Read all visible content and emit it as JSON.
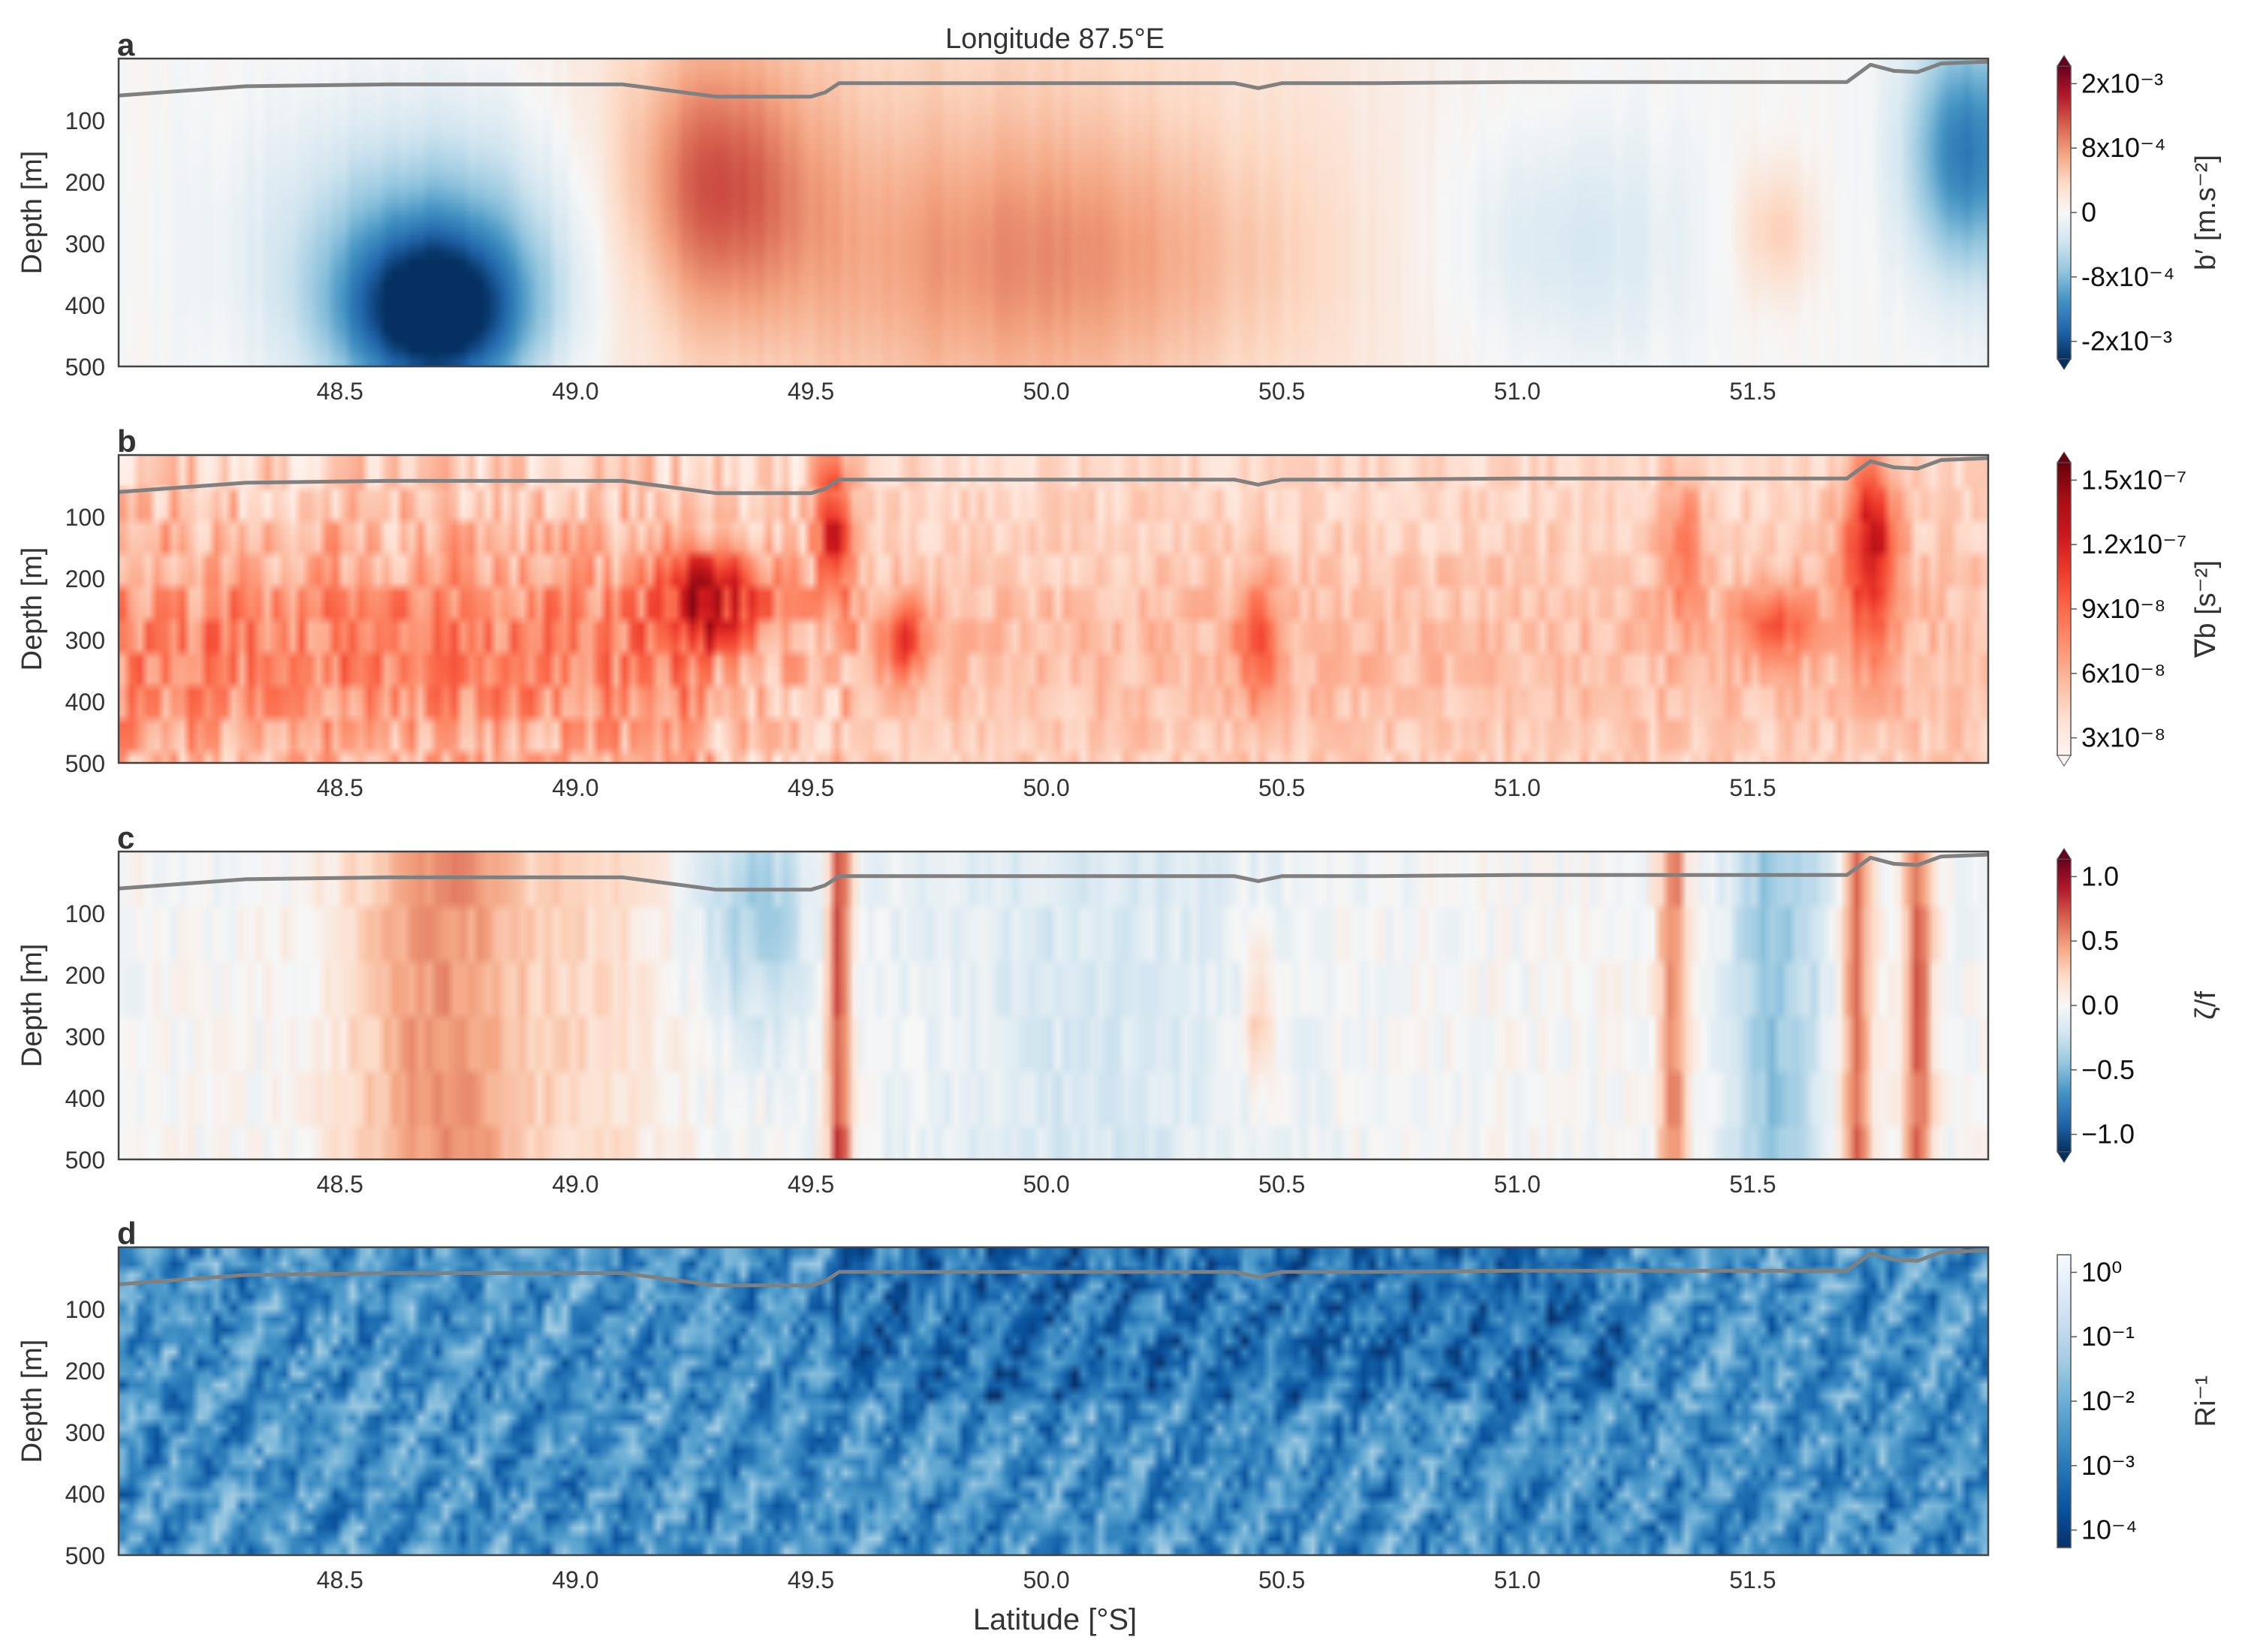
{
  "figure": {
    "title": "Longitude 87.5°E",
    "xlabel": "Latitude [°S]"
  },
  "chart_data": [
    {
      "panel": "a",
      "type": "heatmap",
      "ylabel": "Depth [m]",
      "yticks": [
        "100",
        "200",
        "300",
        "400",
        "500"
      ],
      "ytick_values": [
        100,
        200,
        300,
        400,
        500
      ],
      "xticks": [
        "48.5",
        "49.0",
        "49.5",
        "50.0",
        "50.5",
        "51.0",
        "51.5"
      ],
      "xtick_values": [
        48.5,
        49.0,
        49.5,
        50.0,
        50.5,
        51.0,
        51.5
      ],
      "xlim": [
        48.03,
        52.0
      ],
      "ylim": [
        0,
        500
      ],
      "colormap": "RdBu_r",
      "colorbar": {
        "label": "b′ [m.s⁻²]",
        "ticks": [
          "2x10⁻³",
          "8x10⁻⁴",
          "0",
          "-8x10⁻⁴",
          "-2x10⁻³"
        ],
        "scale": "symmetric-log",
        "extend": "both"
      },
      "mixed_layer_depth": {
        "lat": [
          48.03,
          48.3,
          48.6,
          48.9,
          49.1,
          49.3,
          49.5,
          49.53,
          49.56,
          50.0,
          50.4,
          50.45,
          50.5,
          50.7,
          51.0,
          51.3,
          51.7,
          51.75,
          51.8,
          51.85,
          51.9,
          52.0
        ],
        "depth": [
          60,
          45,
          42,
          42,
          42,
          62,
          62,
          55,
          40,
          40,
          40,
          48,
          40,
          40,
          38,
          38,
          38,
          10,
          20,
          22,
          8,
          5
        ]
      }
    },
    {
      "panel": "b",
      "type": "heatmap",
      "ylabel": "Depth [m]",
      "yticks": [
        "100",
        "200",
        "300",
        "400",
        "500"
      ],
      "ytick_values": [
        100,
        200,
        300,
        400,
        500
      ],
      "xticks": [
        "48.5",
        "49.0",
        "49.5",
        "50.0",
        "50.5",
        "51.0",
        "51.5"
      ],
      "xtick_values": [
        48.5,
        49.0,
        49.5,
        50.0,
        50.5,
        51.0,
        51.5
      ],
      "xlim": [
        48.03,
        52.0
      ],
      "ylim": [
        0,
        500
      ],
      "colormap": "Reds",
      "colorbar": {
        "label": "∇b [s⁻²]",
        "ticks": [
          "1.5x10⁻⁷",
          "1.2x10⁻⁷",
          "9x10⁻⁸",
          "6x10⁻⁸",
          "3x10⁻⁸"
        ],
        "extend": "both"
      }
    },
    {
      "panel": "c",
      "type": "heatmap",
      "ylabel": "Depth [m]",
      "yticks": [
        "100",
        "200",
        "300",
        "400",
        "500"
      ],
      "ytick_values": [
        100,
        200,
        300,
        400,
        500
      ],
      "xticks": [
        "48.5",
        "49.0",
        "49.5",
        "50.0",
        "50.5",
        "51.0",
        "51.5"
      ],
      "xtick_values": [
        48.5,
        49.0,
        49.5,
        50.0,
        50.5,
        51.0,
        51.5
      ],
      "xlim": [
        48.03,
        52.0
      ],
      "ylim": [
        0,
        500
      ],
      "colormap": "RdBu_r",
      "colorbar": {
        "label": "ζ/f",
        "ticks": [
          "1.0",
          "0.5",
          "0.0",
          "−0.5",
          "−1.0"
        ],
        "tick_values": [
          1.0,
          0.5,
          0.0,
          -0.5,
          -1.0
        ],
        "extend": "both"
      }
    },
    {
      "panel": "d",
      "type": "heatmap",
      "ylabel": "Depth [m]",
      "yticks": [
        "100",
        "200",
        "300",
        "400",
        "500"
      ],
      "ytick_values": [
        100,
        200,
        300,
        400,
        500
      ],
      "xticks": [
        "48.5",
        "49.0",
        "49.5",
        "50.0",
        "50.5",
        "51.0",
        "51.5"
      ],
      "xtick_values": [
        48.5,
        49.0,
        49.5,
        50.0,
        50.5,
        51.0,
        51.5
      ],
      "xlim": [
        48.03,
        52.0
      ],
      "ylim": [
        0,
        500
      ],
      "colormap": "Blues_r",
      "colorbar": {
        "label": "Ri⁻¹",
        "ticks": [
          "10⁰",
          "10⁻¹",
          "10⁻²",
          "10⁻³",
          "10⁻⁴"
        ],
        "tick_values": [
          1,
          0.1,
          0.01,
          0.001,
          0.0001
        ],
        "scale": "log"
      }
    }
  ]
}
